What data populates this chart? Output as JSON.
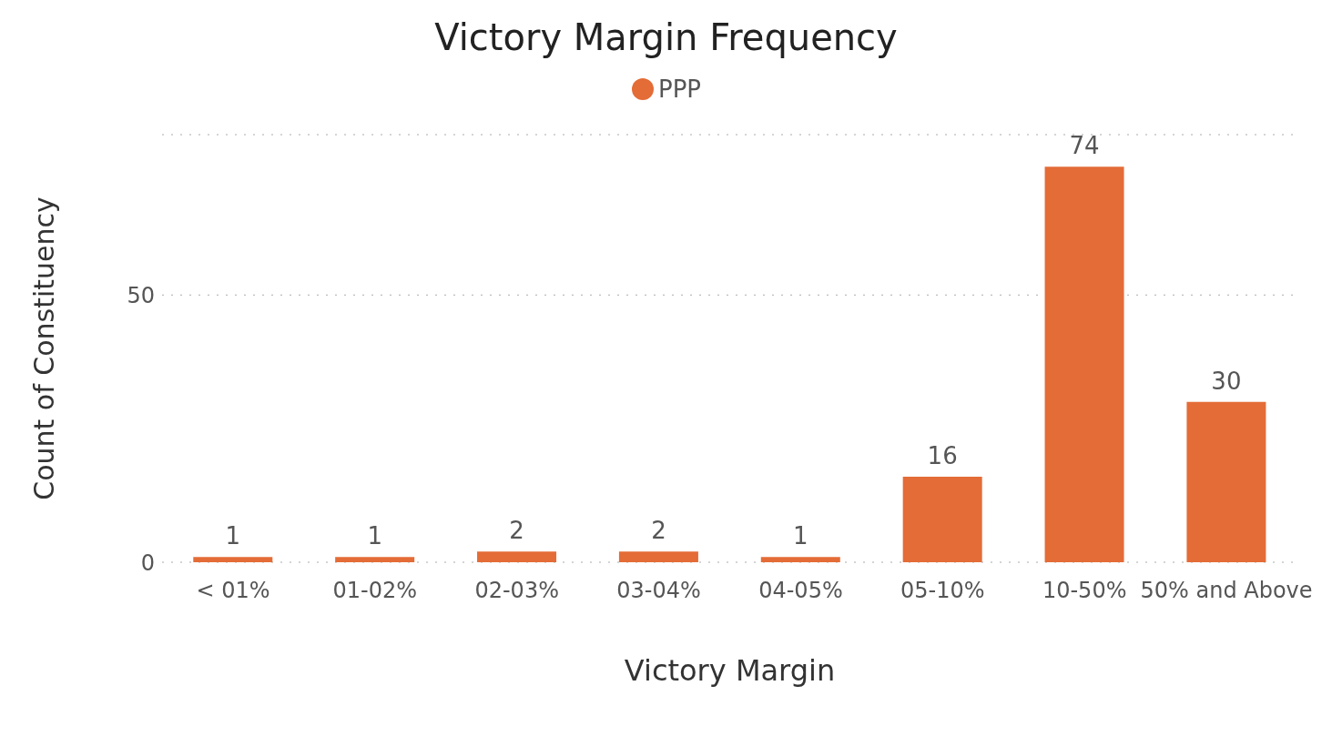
{
  "chart_data": {
    "type": "bar",
    "title": "Victory Margin Frequency",
    "xlabel": "Victory Margin",
    "ylabel": "Count of Constituency",
    "categories": [
      "< 01%",
      "01-02%",
      "02-03%",
      "03-04%",
      "04-05%",
      "05-10%",
      "10-50%",
      "50% and Above"
    ],
    "series": [
      {
        "name": "PPP",
        "color": "#e46c37",
        "values": [
          1,
          1,
          2,
          2,
          1,
          16,
          74,
          30
        ]
      }
    ],
    "ylim": [
      0,
      80
    ],
    "yticks": [
      0,
      50
    ],
    "grid": "y",
    "legend": "top",
    "data_labels": true
  }
}
